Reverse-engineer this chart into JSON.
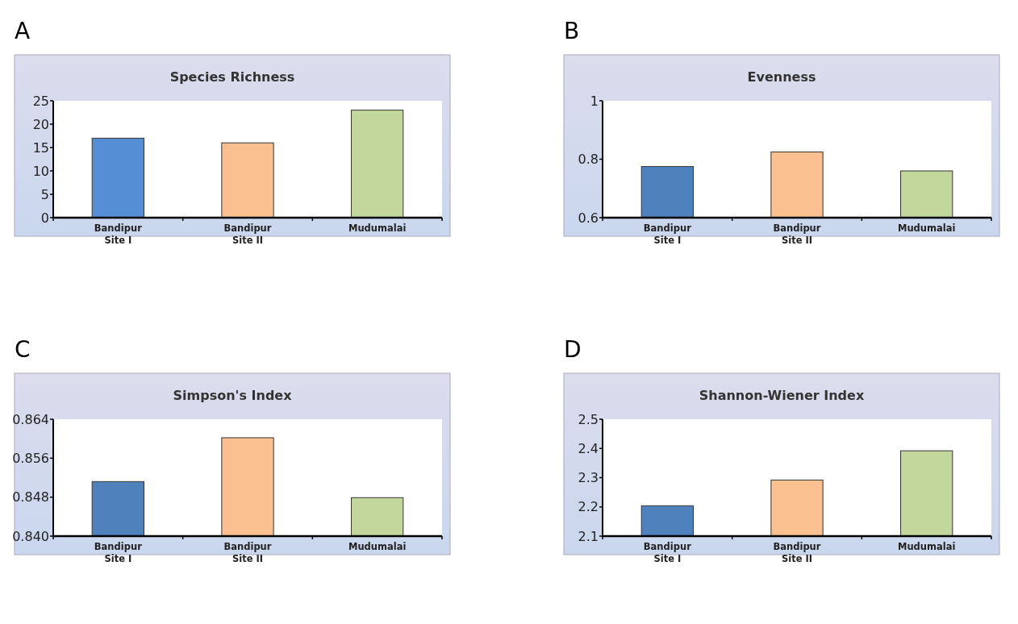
{
  "chart_data": [
    {
      "type": "bar",
      "title": "Species Richness",
      "annotations": [
        "A"
      ],
      "categories": [
        "Bandipur Site I",
        "Bandipur Site II",
        "Mudumalai"
      ],
      "values": [
        17,
        16,
        23
      ],
      "colors": [
        "#558ed5",
        "#fac090",
        "#c3d69b"
      ],
      "ylim": [
        0,
        25
      ],
      "yticks": [
        0,
        5,
        10,
        15,
        20,
        25
      ],
      "grid": false
    },
    {
      "type": "bar",
      "title": "Evenness",
      "annotations": [
        "B"
      ],
      "categories": [
        "Bandipur Site I",
        "Bandipur Site II",
        "Mudumalai"
      ],
      "values": [
        0.775,
        0.825,
        0.76
      ],
      "colors": [
        "#4f81bd",
        "#fac090",
        "#c3d69b"
      ],
      "ylim": [
        0.6,
        1
      ],
      "yticks": [
        0.6,
        0.8,
        1
      ],
      "grid": false
    },
    {
      "type": "bar",
      "title": "Simpson's Index",
      "annotations": [
        "C"
      ],
      "categories": [
        "Bandipur Site I",
        "Bandipur Site II",
        "Mudumalai"
      ],
      "values": [
        0.8512,
        0.8602,
        0.8479
      ],
      "colors": [
        "#4f81bd",
        "#fac090",
        "#c3d69b"
      ],
      "ylim": [
        0.84,
        0.864
      ],
      "yticks": [
        {
          "value": 0.84,
          "label": "0.840"
        },
        {
          "value": 0.848,
          "label": "0.848"
        },
        {
          "value": 0.856,
          "label": "0.856"
        },
        {
          "value": 0.864,
          "label": "0.864"
        }
      ],
      "grid": false
    },
    {
      "type": "bar",
      "title": "Shannon-Wiener Index",
      "annotations": [
        "D"
      ],
      "categories": [
        "Bandipur Site I",
        "Bandipur Site II",
        "Mudumalai"
      ],
      "values": [
        2.204,
        2.292,
        2.392
      ],
      "colors": [
        "#4f81bd",
        "#fac090",
        "#c3d69b"
      ],
      "ylim": [
        2.1,
        2.5
      ],
      "yticks": [
        2.1,
        2.2,
        2.3,
        2.4,
        2.5
      ],
      "grid": false
    }
  ]
}
